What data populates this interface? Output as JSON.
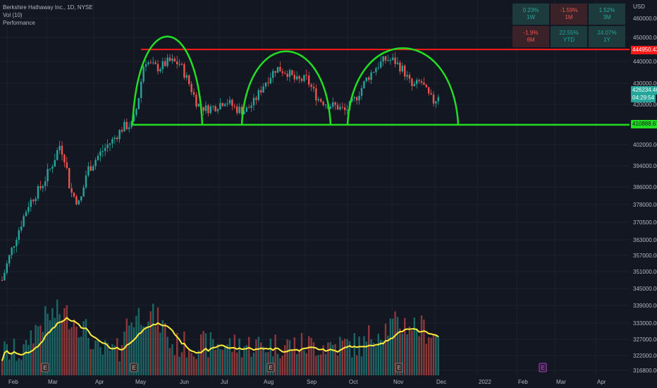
{
  "legend": {
    "symbol": "Berkshire Hathaway Inc., 1D, NYSE",
    "volume": "Vol (10)",
    "indicator": "Performance"
  },
  "currency": "USD",
  "performance": [
    {
      "value": "0.23%",
      "period": "1W",
      "trend": "pos"
    },
    {
      "value": "-1.59%",
      "period": "1M",
      "trend": "neg"
    },
    {
      "value": "1.52%",
      "period": "3M",
      "trend": "pos"
    },
    {
      "value": "-1.9%",
      "period": "6M",
      "trend": "neg"
    },
    {
      "value": "22.55%",
      "period": "YTD",
      "trend": "pos"
    },
    {
      "value": "24.07%",
      "period": "1Y",
      "trend": "pos"
    }
  ],
  "price_tags": {
    "resistance": "444950.43",
    "last_price": "426234.46",
    "countdown": "04:29:54",
    "support": "410888.67"
  },
  "colors": {
    "background": "#131722",
    "up": "#26a69a",
    "down": "#ef5350",
    "resistance": "#ff1a1a",
    "support": "#22dd22",
    "volume_ma": "#ffeb3b",
    "earnings_marker": "#e040fb"
  },
  "chart_data": {
    "type": "candlestick",
    "y_axis_ticks": [
      460000,
      450000,
      440000,
      430000,
      420000,
      402000,
      394000,
      386000,
      378000,
      370500,
      363000,
      357000,
      351000,
      345000,
      339000,
      333000,
      327000,
      322000,
      316800
    ],
    "x_axis_ticks": [
      "Feb",
      "Mar",
      "Apr",
      "May",
      "Jun",
      "Jul",
      "Aug",
      "Sep",
      "Oct",
      "Nov",
      "Dec",
      "2022",
      "Feb",
      "Mar",
      "Apr"
    ],
    "resistance": 444950.43,
    "support": 410888.67,
    "last_price": 426234.46,
    "annotations": [
      "triple-top arcs",
      "horizontal resistance",
      "horizontal support"
    ],
    "earnings_markers": [
      "E",
      "E",
      "E",
      "E",
      "E"
    ]
  }
}
